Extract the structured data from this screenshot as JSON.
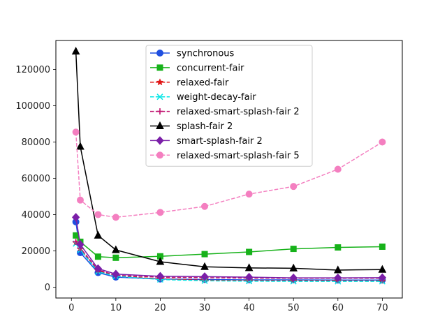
{
  "chart_data": {
    "type": "line",
    "title": "",
    "xlabel": "",
    "ylabel": "",
    "xlim": [
      -3.5,
      74.5
    ],
    "ylim": [
      -6000,
      136000
    ],
    "xticks": [
      0,
      10,
      20,
      30,
      40,
      50,
      60,
      70
    ],
    "yticks": [
      0,
      20000,
      40000,
      60000,
      80000,
      100000,
      120000
    ],
    "grid": false,
    "legend_position": "upper-center",
    "series": [
      {
        "name": "synchronous",
        "color": "#1f4fe0",
        "linestyle": "solid",
        "marker": "circle",
        "x": [
          1,
          2,
          6,
          10,
          20,
          30,
          40,
          50,
          60,
          70
        ],
        "y": [
          36000,
          19000,
          8000,
          5500,
          4500,
          4200,
          4000,
          4000,
          3900,
          3900
        ]
      },
      {
        "name": "concurrent-fair",
        "color": "#17b21a",
        "linestyle": "solid",
        "marker": "square",
        "x": [
          1,
          2,
          6,
          10,
          20,
          30,
          40,
          50,
          60,
          70
        ],
        "y": [
          28500,
          25000,
          16800,
          16200,
          17000,
          18200,
          19400,
          21100,
          21900,
          22300
        ]
      },
      {
        "name": "relaxed-fair",
        "color": "#e01414",
        "linestyle": "dashed",
        "marker": "star",
        "x": [
          1,
          2,
          6,
          10,
          20,
          30,
          40,
          50,
          60,
          70
        ],
        "y": [
          24500,
          21000,
          9000,
          6200,
          4500,
          3800,
          3600,
          3500,
          3500,
          3400
        ]
      },
      {
        "name": "weight-decay-fair",
        "color": "#00e5e5",
        "linestyle": "dashed",
        "marker": "x",
        "x": [
          1,
          2,
          6,
          10,
          20,
          30,
          40,
          50,
          60,
          70
        ],
        "y": [
          24000,
          20500,
          8500,
          6000,
          4200,
          3500,
          3300,
          3200,
          3200,
          3200
        ]
      },
      {
        "name": "relaxed-smart-splash-fair 2",
        "color": "#c0106e",
        "linestyle": "dashed",
        "marker": "plus",
        "x": [
          1,
          2,
          6,
          10,
          20,
          30,
          40,
          50,
          60,
          70
        ],
        "y": [
          25000,
          21500,
          9500,
          6500,
          5500,
          5200,
          5000,
          4900,
          4900,
          4900
        ]
      },
      {
        "name": "splash-fair 2",
        "color": "#000000",
        "linestyle": "solid",
        "marker": "triangle",
        "x": [
          1,
          2,
          6,
          10,
          20,
          30,
          40,
          50,
          60,
          70
        ],
        "y": [
          130000,
          77500,
          28500,
          20500,
          14000,
          11200,
          10600,
          10400,
          9400,
          9700
        ]
      },
      {
        "name": "smart-splash-fair 2",
        "color": "#7b1fa8",
        "linestyle": "solid",
        "marker": "diamond",
        "x": [
          1,
          2,
          6,
          10,
          20,
          30,
          40,
          50,
          60,
          70
        ],
        "y": [
          38500,
          23500,
          10200,
          7200,
          6000,
          5800,
          5500,
          5100,
          5100,
          5200
        ]
      },
      {
        "name": "relaxed-smart-splash-fair 5",
        "color": "#f47fc0",
        "linestyle": "dashed",
        "marker": "circle",
        "x": [
          1,
          2,
          6,
          10,
          20,
          30,
          40,
          50,
          60,
          70
        ],
        "y": [
          85500,
          48000,
          40000,
          38500,
          41200,
          44500,
          51300,
          55500,
          65000,
          80000
        ]
      }
    ]
  }
}
